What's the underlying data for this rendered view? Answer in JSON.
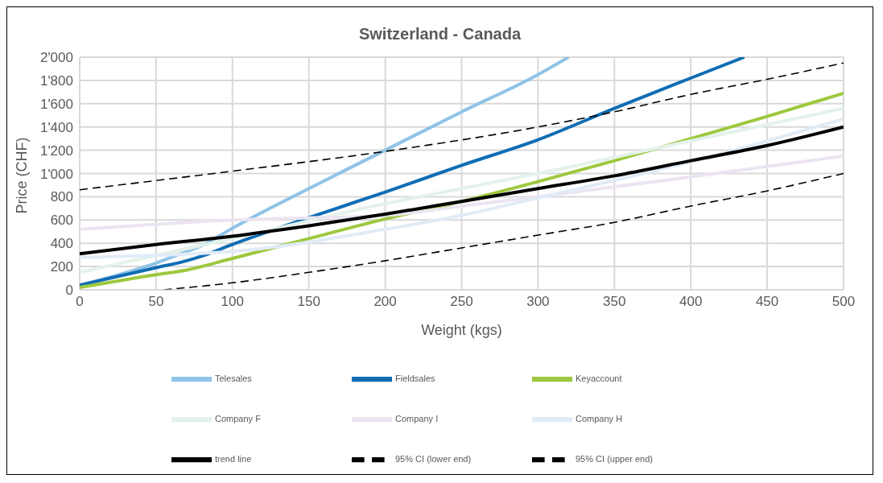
{
  "chart_data": {
    "type": "line",
    "title": "Switzerland - Canada",
    "xlabel": "Weight (kgs)",
    "ylabel": "Price (CHF)",
    "xlim": [
      0,
      500
    ],
    "xticks": [
      0,
      50,
      100,
      150,
      200,
      250,
      300,
      350,
      400,
      450,
      500
    ],
    "ylim": [
      0,
      2000
    ],
    "yticks": [
      0,
      200,
      400,
      600,
      800,
      {
        "value": 1000,
        "label": "1'000"
      },
      {
        "value": 1200,
        "label": "1'200"
      },
      {
        "value": 1400,
        "label": "1'400"
      },
      {
        "value": 1600,
        "label": "1'600"
      },
      {
        "value": 1800,
        "label": "1'800"
      },
      {
        "value": 2000,
        "label": "2'000"
      }
    ],
    "grid": true,
    "legend": "bottom",
    "marker": "none",
    "line_style": "solid",
    "series": [
      {
        "name": "Telesales",
        "color": "#8fc3e8",
        "x": [
          0,
          20,
          50,
          70,
          80,
          100,
          150,
          200,
          250,
          300,
          320
        ],
        "values": [
          40,
          110,
          230,
          330,
          380,
          530,
          870,
          1200,
          1530,
          1850,
          2000
        ]
      },
      {
        "name": "Fieldsales",
        "color": "#0f6db3",
        "x": [
          0,
          20,
          50,
          70,
          80,
          100,
          150,
          200,
          250,
          300,
          350,
          400,
          435
        ],
        "values": [
          40,
          100,
          190,
          250,
          290,
          390,
          620,
          840,
          1070,
          1290,
          1560,
          1820,
          2000
        ]
      },
      {
        "name": "Keyaccount",
        "color": "#9dc83e",
        "x": [
          0,
          50,
          70,
          100,
          150,
          200,
          250,
          300,
          350,
          400,
          450,
          500
        ],
        "values": [
          20,
          130,
          170,
          270,
          440,
          610,
          760,
          930,
          1110,
          1300,
          1490,
          1690
        ]
      },
      {
        "name": "Company F",
        "color": "#e3f2ea",
        "x": [
          0,
          100,
          200,
          250,
          300,
          400,
          500
        ],
        "values": [
          150,
          440,
          740,
          870,
          1000,
          1280,
          1560
        ]
      },
      {
        "name": "Company I",
        "color": "#ece4f0",
        "x": [
          0,
          100,
          200,
          250,
          300,
          400,
          500
        ],
        "values": [
          520,
          600,
          640,
          720,
          800,
          970,
          1150
        ]
      },
      {
        "name": "Company H",
        "color": "#e1ebf7",
        "x": [
          0,
          100,
          200,
          250,
          300,
          400,
          500
        ],
        "values": [
          280,
          330,
          520,
          640,
          790,
          1100,
          1470
        ]
      },
      {
        "name": "trend line",
        "color": "#000000",
        "x": [
          0,
          50,
          100,
          150,
          200,
          250,
          300,
          350,
          400,
          450,
          500
        ],
        "values": [
          310,
          390,
          460,
          550,
          650,
          760,
          870,
          980,
          1110,
          1240,
          1400
        ]
      },
      {
        "name": "95% CI (lower end)",
        "color": "#000000",
        "line_style": "dashed",
        "x": [
          55,
          100,
          150,
          200,
          250,
          300,
          350,
          400,
          450,
          500
        ],
        "values": [
          0,
          60,
          150,
          250,
          360,
          470,
          580,
          720,
          850,
          1000
        ]
      },
      {
        "name": "95% CI (upper end)",
        "color": "#000000",
        "line_style": "dashed",
        "x": [
          0,
          100,
          200,
          300,
          350,
          400,
          450,
          500
        ],
        "values": [
          860,
          1020,
          1190,
          1400,
          1530,
          1680,
          1810,
          1950
        ]
      }
    ]
  }
}
